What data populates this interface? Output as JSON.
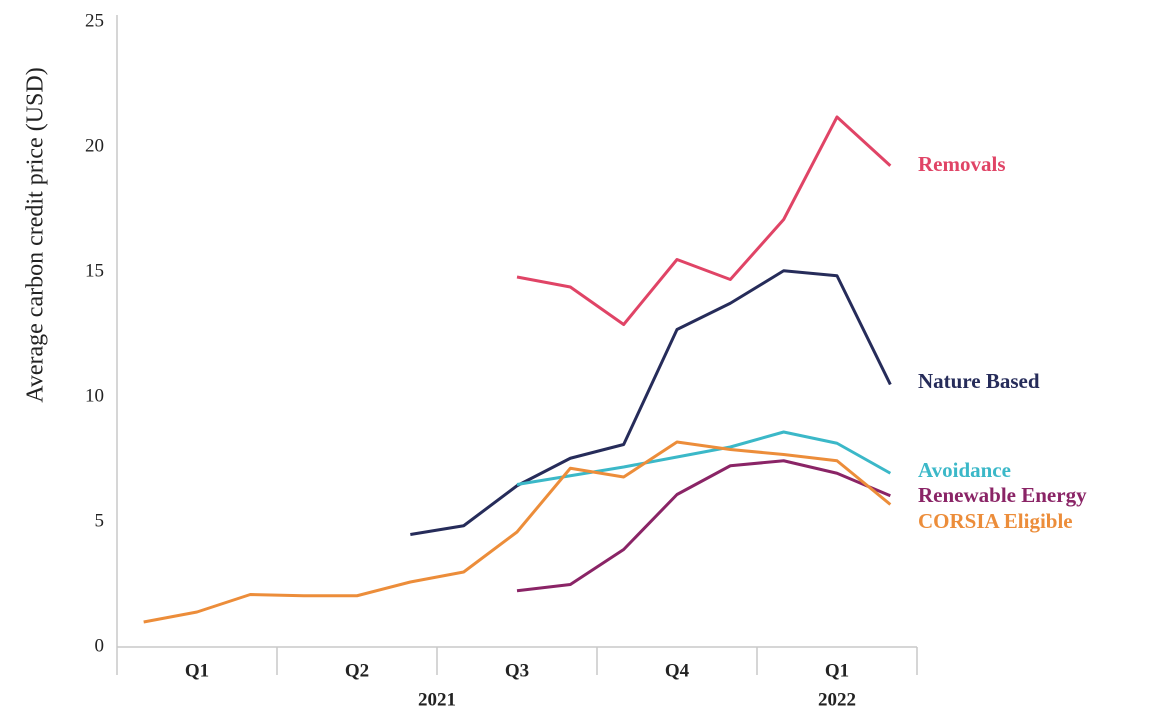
{
  "chart_data": {
    "type": "line",
    "ylabel": "Average carbon credit price (USD)",
    "categories": [
      null,
      null,
      null,
      null,
      null,
      null,
      null,
      null,
      null,
      null,
      null,
      null,
      null,
      null,
      null
    ],
    "quarter_labels": [
      "Q1",
      "Q2",
      "Q3",
      "Q4",
      "Q1"
    ],
    "year_labels": [
      "2021",
      "2022"
    ],
    "ylim": [
      0,
      25
    ],
    "yticks": [
      0,
      5,
      10,
      15,
      20,
      25
    ],
    "grid": false,
    "series": [
      {
        "name": "Removals",
        "color": "#e04466",
        "values": [
          null,
          null,
          null,
          null,
          null,
          null,
          null,
          14.8,
          14.4,
          12.9,
          15.5,
          14.7,
          17.1,
          21.2,
          19.25
        ]
      },
      {
        "name": "Nature Based",
        "color": "#262c5a",
        "values": [
          null,
          null,
          null,
          null,
          null,
          4.5,
          4.85,
          6.45,
          7.55,
          8.1,
          12.7,
          13.75,
          15.05,
          14.85,
          10.5
        ]
      },
      {
        "name": "Avoidance",
        "color": "#3bb8c8",
        "values": [
          null,
          null,
          null,
          null,
          null,
          null,
          null,
          6.5,
          6.85,
          7.2,
          7.6,
          8.0,
          8.6,
          8.15,
          6.95
        ]
      },
      {
        "name": "Renewable Energy",
        "color": "#8a2466",
        "values": [
          null,
          null,
          null,
          null,
          null,
          null,
          null,
          2.25,
          2.5,
          3.9,
          6.1,
          7.25,
          7.45,
          6.95,
          6.05
        ]
      },
      {
        "name": "CORSIA Eligible",
        "color": "#ec8d3a",
        "values": [
          1.0,
          1.4,
          2.1,
          2.05,
          2.05,
          2.6,
          3.0,
          4.6,
          7.15,
          6.8,
          8.2,
          7.9,
          7.7,
          7.45,
          5.7
        ]
      }
    ]
  }
}
